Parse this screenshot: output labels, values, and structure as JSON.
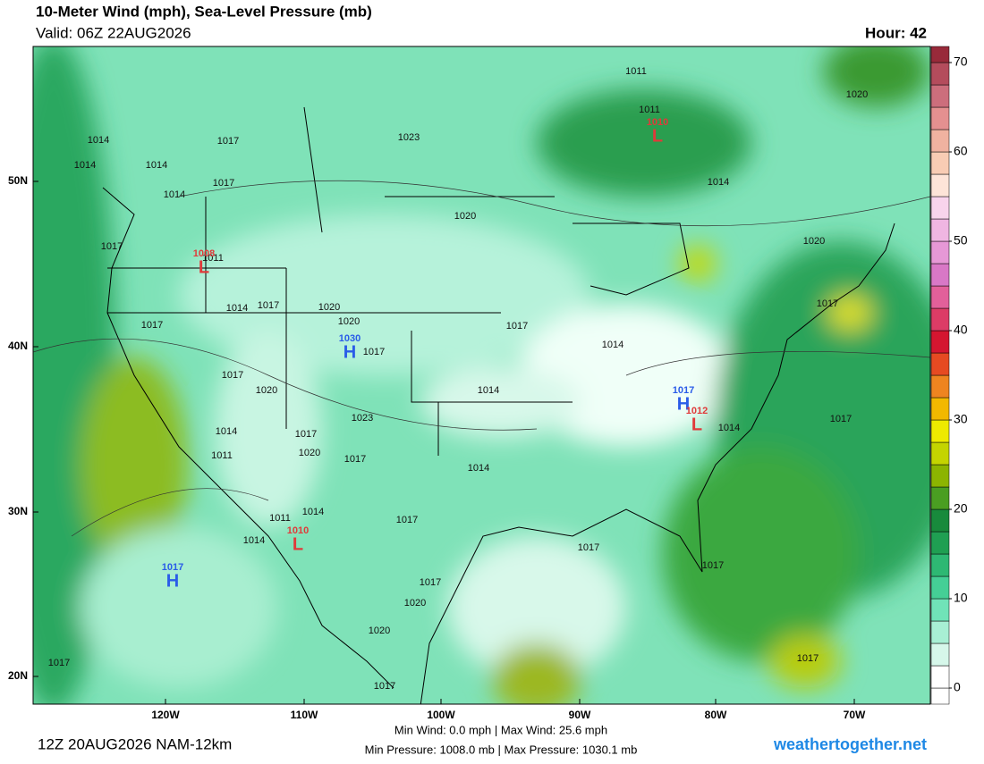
{
  "header": {
    "title": "10-Meter Wind (mph), Sea-Level Pressure (mb)",
    "valid": "Valid: 06Z 22AUG2026",
    "hour": "Hour: 42"
  },
  "footer": {
    "run": "12Z 20AUG2026 NAM-12km",
    "wind_stats": "Min Wind:   0.0 mph | Max Wind:  25.6 mph",
    "pressure_stats": "Min Pressure: 1008.0 mb | Max Pressure: 1030.1 mb",
    "site": "weathertogether.net"
  },
  "axes": {
    "lat_labels": [
      "50N",
      "40N",
      "30N",
      "20N"
    ],
    "lon_labels": [
      "120W",
      "110W",
      "100W",
      "90W",
      "80W",
      "70W"
    ]
  },
  "colorbar": {
    "ticks": [
      0,
      10,
      20,
      30,
      40,
      50,
      60,
      70
    ],
    "colors": [
      "#ffffff",
      "#d6f7ea",
      "#a8efd4",
      "#70e3b8",
      "#45cf96",
      "#2eb873",
      "#1f9f52",
      "#188a3c",
      "#4a9e22",
      "#8cb400",
      "#c4d400",
      "#eeea00",
      "#f2b800",
      "#ee8420",
      "#e64a22",
      "#d41630",
      "#dc3c66",
      "#e2609a",
      "#d878c6",
      "#e698d6",
      "#f0b6e2",
      "#f8d4ec",
      "#fde4d8",
      "#f8ccb4",
      "#f0b2a0",
      "#e49090",
      "#cc6e7c",
      "#b44c5c",
      "#982a3a",
      "#7a0a12"
    ]
  },
  "pressure_labels": [
    "1011",
    "1011",
    "1020",
    "1014",
    "1017",
    "1023",
    "1014",
    "1014",
    "1017",
    "1014",
    "1014",
    "1020",
    "1017",
    "1011",
    "1020",
    "1014",
    "1017",
    "1020",
    "1020",
    "1017",
    "1017",
    "1017",
    "1014",
    "1017",
    "1017",
    "1020",
    "1014",
    "1023",
    "1017",
    "1014",
    "1014",
    "1017",
    "1011",
    "1020",
    "1017",
    "1014",
    "1011",
    "1014",
    "1017",
    "1014",
    "1017",
    "1017",
    "1017",
    "1020",
    "1020",
    "1017",
    "1017",
    "1017"
  ],
  "centers": [
    {
      "symbol": "L",
      "value": "1010",
      "color": "#e03a3a"
    },
    {
      "symbol": "L",
      "value": "1008",
      "color": "#e03a3a"
    },
    {
      "symbol": "H",
      "value": "1030",
      "color": "#2a5ce8"
    },
    {
      "symbol": "H",
      "value": "1017",
      "color": "#2a5ce8"
    },
    {
      "symbol": "L",
      "value": "1012",
      "color": "#e03a3a"
    },
    {
      "symbol": "L",
      "value": "1010",
      "color": "#e03a3a"
    },
    {
      "symbol": "H",
      "value": "1017",
      "color": "#2a5ce8"
    }
  ]
}
